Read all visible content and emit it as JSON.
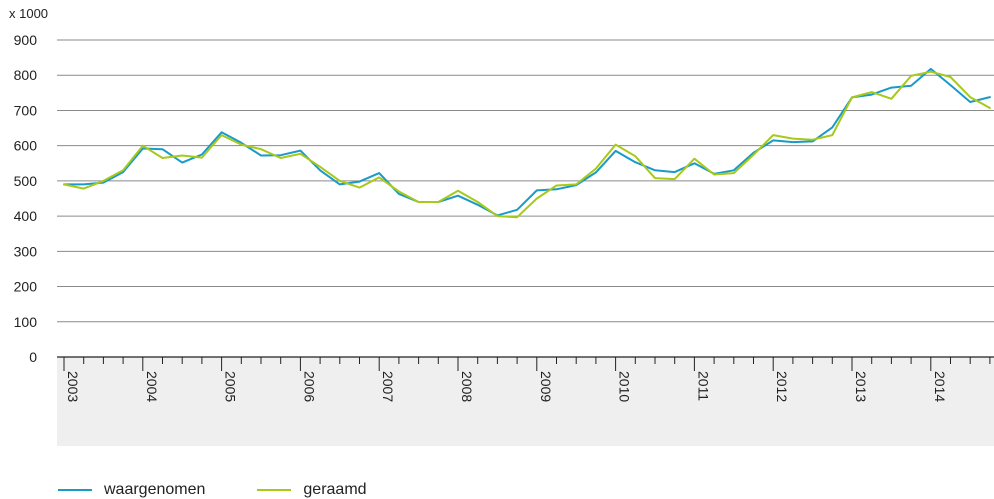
{
  "chart_data": {
    "type": "line",
    "unit_label": "x 1000",
    "ylim": [
      0,
      900
    ],
    "yticks": [
      0,
      100,
      200,
      300,
      400,
      500,
      600,
      700,
      800,
      900
    ],
    "grid": true,
    "legend_position": "bottom-left",
    "x": [
      "2003Q1",
      "2003Q2",
      "2003Q3",
      "2003Q4",
      "2004Q1",
      "2004Q2",
      "2004Q3",
      "2004Q4",
      "2005Q1",
      "2005Q2",
      "2005Q3",
      "2005Q4",
      "2006Q1",
      "2006Q2",
      "2006Q3",
      "2006Q4",
      "2007Q1",
      "2007Q2",
      "2007Q3",
      "2007Q4",
      "2008Q1",
      "2008Q2",
      "2008Q3",
      "2008Q4",
      "2009Q1",
      "2009Q2",
      "2009Q3",
      "2009Q4",
      "2010Q1",
      "2010Q2",
      "2010Q3",
      "2010Q4",
      "2011Q1",
      "2011Q2",
      "2011Q3",
      "2011Q4",
      "2012Q1",
      "2012Q2",
      "2012Q3",
      "2012Q4",
      "2013Q1",
      "2013Q2",
      "2013Q3",
      "2013Q4",
      "2014Q1",
      "2014Q2",
      "2014Q3",
      "2014Q4"
    ],
    "year_labels": [
      "2003",
      "2004",
      "2005",
      "2006",
      "2007",
      "2008",
      "2009",
      "2010",
      "2011",
      "2012",
      "2013",
      "2014"
    ],
    "series": [
      {
        "name": "waargenomen",
        "color": "#1a9ac9",
        "values": [
          490,
          490,
          495,
          525,
          592,
          590,
          552,
          575,
          638,
          608,
          572,
          573,
          586,
          530,
          490,
          498,
          522,
          463,
          440,
          440,
          458,
          432,
          402,
          418,
          473,
          476,
          488,
          524,
          585,
          553,
          530,
          525,
          550,
          520,
          530,
          580,
          615,
          610,
          612,
          652,
          737,
          745,
          765,
          770,
          818,
          772,
          724,
          738
        ]
      },
      {
        "name": "geraamd",
        "color": "#a6c91a",
        "values": [
          490,
          478,
          500,
          530,
          600,
          565,
          572,
          566,
          630,
          603,
          590,
          565,
          577,
          540,
          500,
          481,
          510,
          470,
          440,
          440,
          472,
          440,
          400,
          397,
          450,
          487,
          490,
          535,
          603,
          570,
          508,
          505,
          563,
          518,
          522,
          574,
          630,
          620,
          617,
          630,
          737,
          752,
          733,
          798,
          810,
          795,
          738,
          707
        ]
      }
    ]
  }
}
